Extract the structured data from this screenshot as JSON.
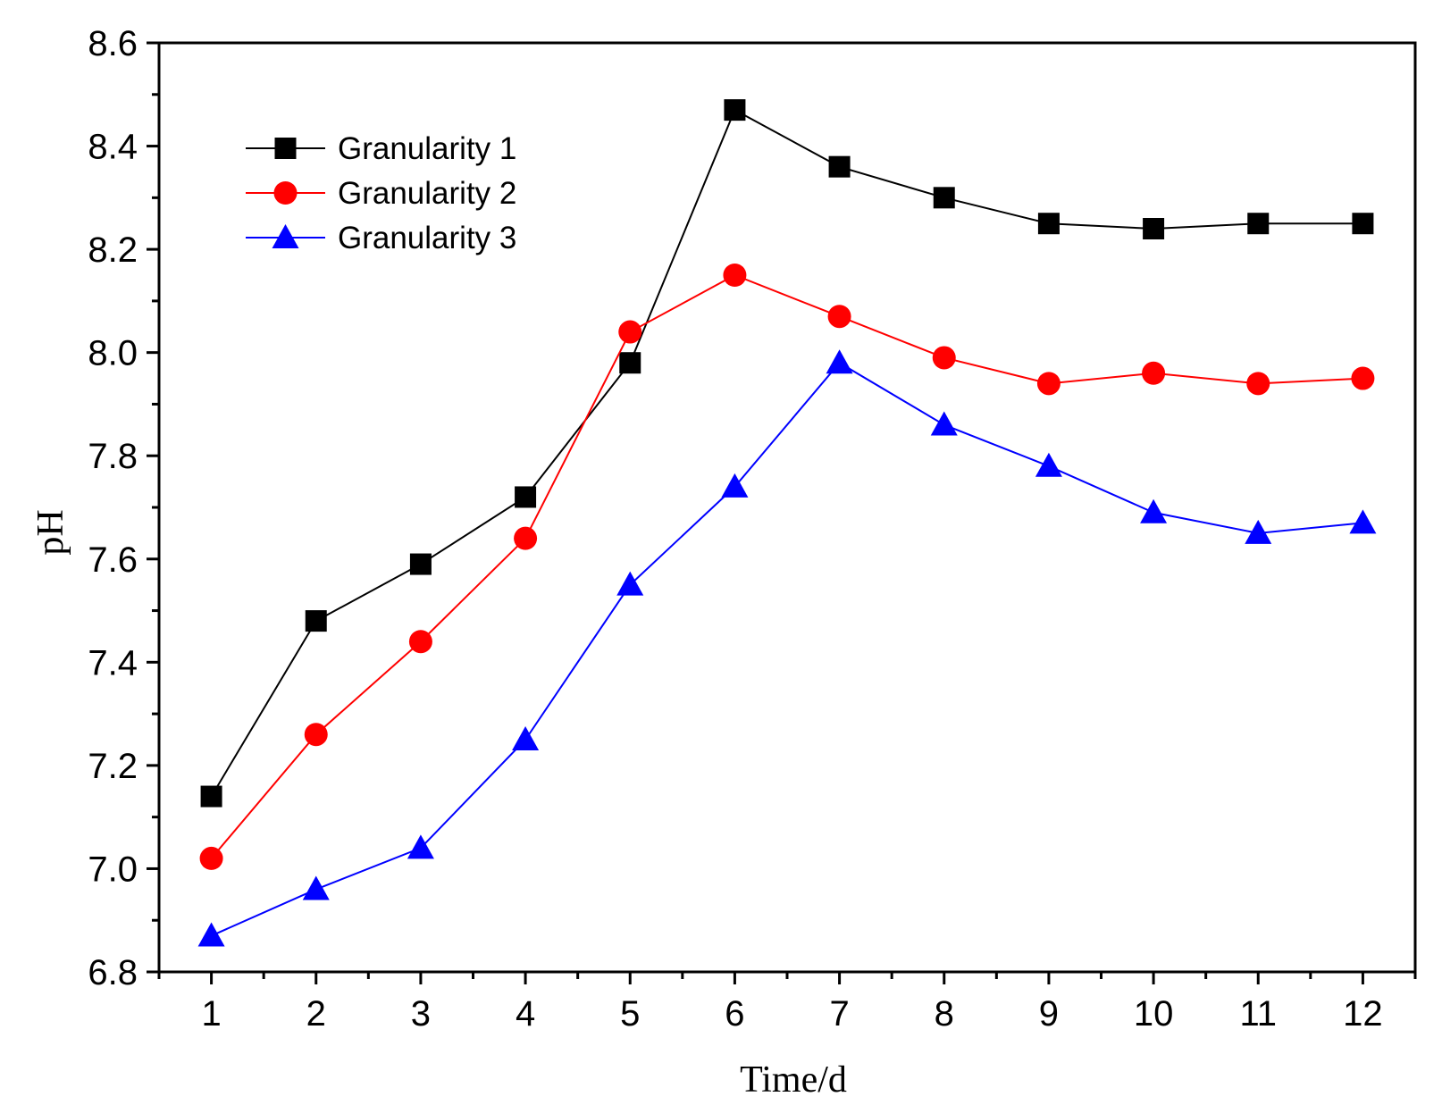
{
  "chart_data": {
    "type": "line",
    "title": "",
    "xlabel": "Time/d",
    "ylabel": "pH",
    "x": [
      1,
      2,
      3,
      4,
      5,
      6,
      7,
      8,
      9,
      10,
      11,
      12
    ],
    "xlim": [
      0.5,
      12.5
    ],
    "ylim": [
      6.8,
      8.6
    ],
    "yticks": [
      "6.8",
      "7.0",
      "7.2",
      "7.4",
      "7.6",
      "7.8",
      "8.0",
      "8.2",
      "8.4",
      "8.6"
    ],
    "xticks": [
      "1",
      "2",
      "3",
      "4",
      "5",
      "6",
      "7",
      "8",
      "9",
      "10",
      "11",
      "12"
    ],
    "grid": false,
    "legend_position": "top-left",
    "series": [
      {
        "name": "Granularity 1",
        "color": "#000000",
        "marker": "square",
        "values": [
          7.14,
          7.48,
          7.59,
          7.72,
          7.98,
          8.47,
          8.36,
          8.3,
          8.25,
          8.24,
          8.25,
          8.25
        ]
      },
      {
        "name": "Granularity 2",
        "color": "#ff0000",
        "marker": "circle",
        "values": [
          7.02,
          7.26,
          7.44,
          7.64,
          8.04,
          8.15,
          8.07,
          7.99,
          7.94,
          7.96,
          7.94,
          7.95
        ]
      },
      {
        "name": "Granularity 3",
        "color": "#0000ff",
        "marker": "triangle",
        "values": [
          6.87,
          6.96,
          7.04,
          7.25,
          7.55,
          7.74,
          7.98,
          7.86,
          7.78,
          7.69,
          7.65,
          7.67
        ]
      }
    ]
  }
}
